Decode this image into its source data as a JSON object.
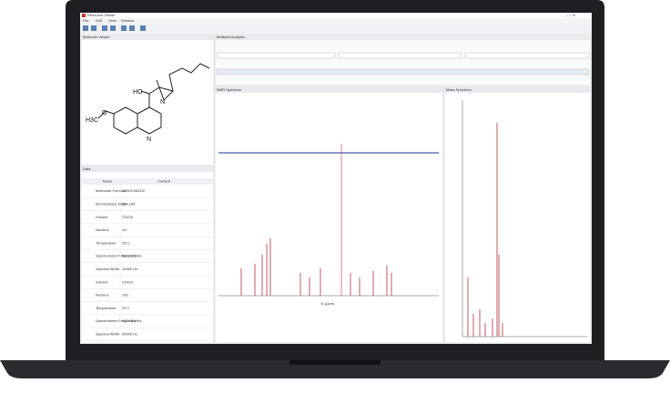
{
  "window": {
    "title": "Resource Viewer",
    "menu": [
      "File",
      "Edit",
      "View",
      "Window"
    ]
  },
  "panels": {
    "molecule": "Molecule Viewer",
    "top": "Multiplet Analysis",
    "table": "Data",
    "nmr": "NMR Spectrum",
    "mass": "Mass Spectrum"
  },
  "molecule": {
    "atoms": [
      "HO",
      "N",
      "H3C",
      "O",
      "N"
    ]
  },
  "table": {
    "headers": [
      "Name",
      "Content"
    ],
    "rows": [
      [
        "Molecular Formula",
        "C20H24N2O2"
      ],
      [
        "Monoisotopic Mass",
        "324.184"
      ],
      [
        "Solvent",
        "CDCl3"
      ],
      [
        "Nucleus",
        "1H"
      ],
      [
        "Temperature",
        "25 C"
      ],
      [
        "Spectrometer Frequency",
        "500.13 MHz"
      ],
      [
        "Spectral Width",
        "10000 Hz"
      ],
      [
        "Solvent",
        "CDCl3"
      ],
      [
        "Nucleus",
        "13C"
      ],
      [
        "Temperature",
        "25 C"
      ],
      [
        "Spectrometer Frequency",
        "125.76 MHz"
      ],
      [
        "Spectral Width",
        "30000 Hz"
      ]
    ]
  },
  "nmr": {
    "x_label": "f1 (ppm)"
  }
}
